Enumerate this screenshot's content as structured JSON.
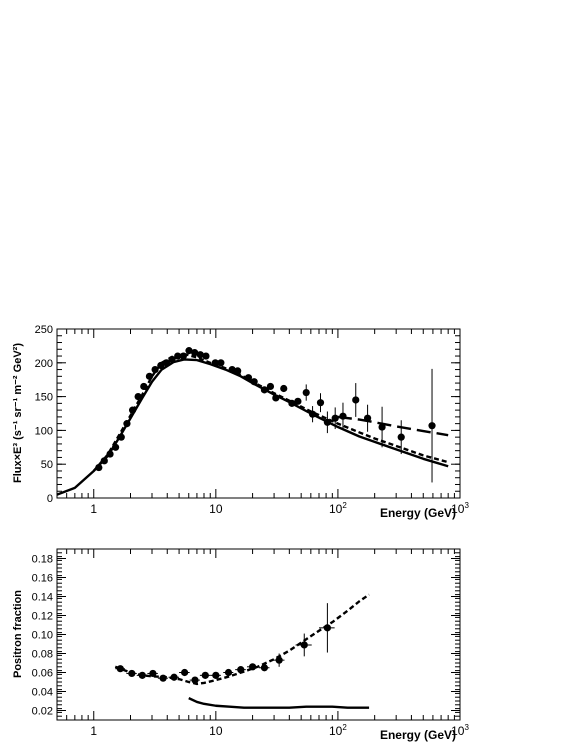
{
  "chart_data": [
    {
      "type": "scatter",
      "xlabel": "Energy (GeV)",
      "ylabel": "Flux×E³ (s⁻¹ sr⁻¹ m⁻² GeV²)",
      "xscale": "log",
      "xlim": [
        0.5,
        1000
      ],
      "ylim": [
        0,
        250
      ],
      "x_ticklabels": [
        "1",
        "10",
        "10²",
        "10³"
      ],
      "y_ticks": [
        0,
        50,
        100,
        150,
        200,
        250
      ],
      "grid": false,
      "legend": "none",
      "series": [
        {
          "style": "points-with-errorbars",
          "x": [
            1.1,
            1.22,
            1.36,
            1.51,
            1.68,
            1.87,
            2.08,
            2.31,
            2.57,
            2.86,
            3.18,
            3.54,
            3.94,
            4.38,
            4.87,
            5.42,
            6.03,
            6.71,
            7.46,
            8.3,
            9.9,
            11.0,
            13.6,
            15.1,
            18.5,
            20.6,
            25.0,
            28.0,
            31.0,
            36.0,
            42.0,
            47.0,
            55.0,
            62.0,
            72.0,
            82.0,
            95.0,
            110.0,
            140.0,
            175.0,
            230.0,
            330.0,
            590.0
          ],
          "y": [
            45,
            55,
            65,
            75,
            90,
            110,
            130,
            150,
            165,
            180,
            190,
            196,
            200,
            205,
            210,
            210,
            218,
            215,
            212,
            210,
            200,
            200,
            190,
            188,
            178,
            172,
            160,
            165,
            148,
            162,
            140,
            143,
            156,
            124,
            141,
            112,
            118,
            121,
            145,
            118,
            105,
            90,
            107
          ],
          "y_err": [
            0,
            0,
            0,
            0,
            0,
            0,
            0,
            0,
            0,
            0,
            0,
            0,
            0,
            0,
            0,
            0,
            0,
            0,
            0,
            0,
            0,
            0,
            0,
            0,
            0,
            0,
            0,
            0,
            0,
            0,
            0,
            0,
            12,
            12,
            14,
            16,
            16,
            20,
            25,
            20,
            30,
            25,
            84
          ]
        },
        {
          "style": "solid",
          "x": [
            0.5,
            0.7,
            1.0,
            1.3,
            1.6,
            2.0,
            2.5,
            3.0,
            3.6,
            4.5,
            5.5,
            7.0,
            9.0,
            12.0,
            16.0,
            20.0,
            30.0,
            40.0,
            60.0,
            100.0,
            150.0,
            200.0,
            300.0,
            500.0,
            800.0
          ],
          "y": [
            5,
            15,
            40,
            62,
            88,
            118,
            148,
            172,
            190,
            201,
            205,
            204,
            198,
            190,
            180,
            170,
            153,
            142,
            125,
            105,
            91,
            83,
            72,
            58,
            47
          ]
        },
        {
          "style": "dashed",
          "x": [
            1.0,
            1.3,
            1.6,
            2.0,
            2.5,
            3.0,
            3.6,
            4.5,
            5.5,
            7.0,
            9.0,
            12.0,
            16.0,
            20.0,
            30.0,
            40.0,
            60.0,
            100.0,
            150.0,
            200.0,
            300.0,
            500.0,
            800.0
          ],
          "y": [
            40,
            64,
            92,
            122,
            153,
            180,
            200,
            210,
            213,
            208,
            200,
            192,
            182,
            172,
            155,
            144,
            128,
            110,
            97,
            88,
            77,
            63,
            53
          ]
        },
        {
          "style": "long-dashed",
          "x": [
            100.0,
            150.0,
            200.0,
            300.0,
            500.0,
            800.0
          ],
          "y": [
            120,
            116,
            112,
            106,
            99,
            93
          ]
        }
      ]
    },
    {
      "type": "scatter",
      "xlabel": "Energy (GeV)",
      "ylabel": "Positron fraction",
      "xscale": "log",
      "xlim": [
        0.5,
        1000
      ],
      "ylim": [
        0.01,
        0.19
      ],
      "x_ticklabels": [
        "1",
        "10",
        "10²",
        "10³"
      ],
      "y_ticks": [
        0.02,
        0.04,
        0.06,
        0.08,
        0.1,
        0.12,
        0.14,
        0.16,
        0.18
      ],
      "grid": false,
      "legend": "none",
      "series": [
        {
          "style": "points-with-errorbars",
          "x": [
            1.65,
            2.05,
            2.5,
            3.05,
            3.7,
            4.55,
            5.55,
            6.75,
            8.2,
            10.0,
            12.7,
            16.0,
            20.0,
            25.0,
            33.0,
            53.0,
            82.0
          ],
          "y": [
            0.064,
            0.059,
            0.057,
            0.059,
            0.054,
            0.055,
            0.06,
            0.052,
            0.057,
            0.057,
            0.06,
            0.063,
            0.066,
            0.065,
            0.073,
            0.089,
            0.107
          ],
          "y_err": [
            0,
            0,
            0,
            0,
            0,
            0,
            0,
            0,
            0,
            0,
            0,
            0,
            0,
            0,
            0.007,
            0.012,
            0.026
          ],
          "x_err_low": [
            0.15,
            0.2,
            0.25,
            0.3,
            0.35,
            0.45,
            0.55,
            0.65,
            0.8,
            1.0,
            1.2,
            1.6,
            2.0,
            2.5,
            3.5,
            8.0,
            12.0
          ],
          "x_err_high": [
            0.15,
            0.2,
            0.25,
            0.3,
            0.35,
            0.45,
            0.55,
            0.65,
            0.8,
            1.0,
            1.2,
            1.6,
            2.0,
            2.5,
            3.5,
            8.0,
            12.0
          ]
        },
        {
          "style": "dashed",
          "x": [
            1.5,
            2.0,
            2.5,
            3.0,
            4.0,
            5.0,
            6.0,
            7.0,
            8.0,
            10.0,
            13.0,
            17.0,
            22.0,
            30.0,
            40.0,
            55.0,
            70.0,
            90.0,
            120.0,
            150.0,
            180.0
          ],
          "y": [
            0.066,
            0.06,
            0.057,
            0.056,
            0.055,
            0.053,
            0.05,
            0.048,
            0.049,
            0.052,
            0.056,
            0.061,
            0.066,
            0.074,
            0.083,
            0.095,
            0.104,
            0.113,
            0.125,
            0.135,
            0.142
          ]
        },
        {
          "style": "solid",
          "x": [
            6.0,
            7.0,
            8.0,
            10.0,
            13.0,
            17.0,
            22.0,
            30.0,
            40.0,
            55.0,
            70.0,
            90.0,
            120.0,
            150.0,
            180.0
          ],
          "y": [
            0.033,
            0.029,
            0.027,
            0.025,
            0.024,
            0.023,
            0.023,
            0.023,
            0.023,
            0.024,
            0.024,
            0.024,
            0.023,
            0.023,
            0.023
          ]
        }
      ]
    }
  ]
}
